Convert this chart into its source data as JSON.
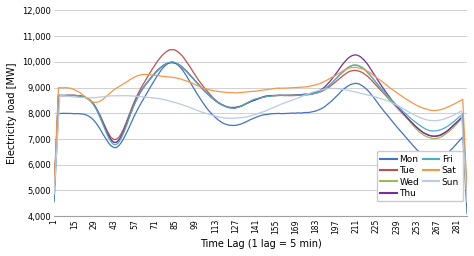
{
  "xlabel": "Time Lag (1 lag = 5 min)",
  "ylabel": "Electricity load [MW]",
  "ylim": [
    4000,
    12000
  ],
  "yticks": [
    4000,
    5000,
    6000,
    7000,
    8000,
    9000,
    10000,
    11000,
    12000
  ],
  "xticks": [
    1,
    15,
    29,
    43,
    57,
    71,
    85,
    99,
    113,
    127,
    141,
    155,
    169,
    183,
    197,
    211,
    225,
    239,
    253,
    267,
    281
  ],
  "days": [
    "Mon",
    "Tue",
    "Wed",
    "Thu",
    "Fri",
    "Sat",
    "Sun"
  ],
  "colors": {
    "Mon": "#4472C4",
    "Tue": "#C0504D",
    "Wed": "#9BBB59",
    "Thu": "#7030A0",
    "Fri": "#4BACC6",
    "Sat": "#F79646",
    "Sun": "#B8CCE4"
  },
  "background_color": "#FFFFFF",
  "grid_color": "#BEBEBE"
}
